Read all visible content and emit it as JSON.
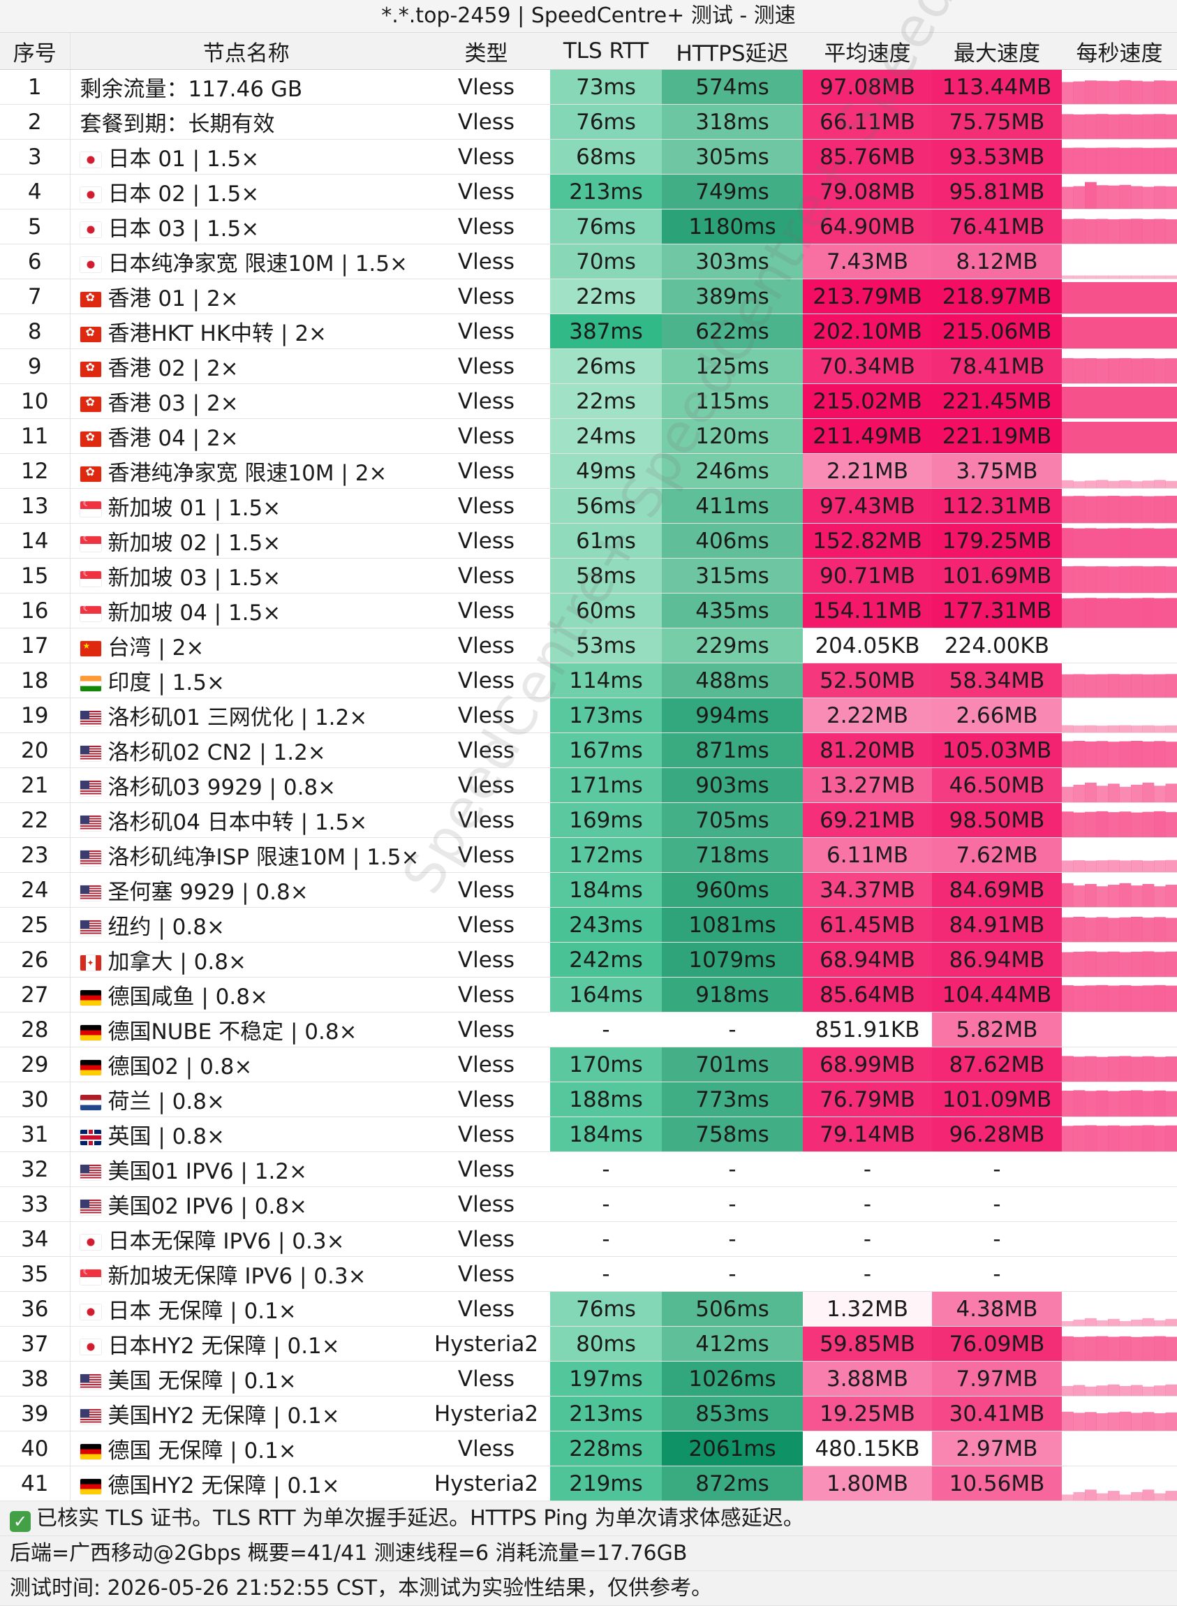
{
  "title": "*.*.top-2459 | SpeedCentre+ 测试 - 测速",
  "headers": [
    "序号",
    "节点名称",
    "类型",
    "TLS RTT",
    "HTTPS延迟",
    "平均速度",
    "最大速度",
    "每秒速度"
  ],
  "rows": [
    {
      "idx": "1",
      "flag": "",
      "name": "剩余流量：117.46 GB",
      "type": "Vless",
      "rtt": "73ms",
      "https": "574ms",
      "avg": "97.08MB",
      "max": "113.44MB",
      "spark": [
        0.7,
        0.72,
        0.75,
        0.74,
        0.73,
        0.76,
        0.74,
        0.72,
        0.75,
        0.74
      ]
    },
    {
      "idx": "2",
      "flag": "",
      "name": "套餐到期：长期有效",
      "type": "Vless",
      "rtt": "76ms",
      "https": "318ms",
      "avg": "66.11MB",
      "max": "75.75MB",
      "spark": []
    },
    {
      "idx": "3",
      "flag": "jp",
      "name": "日本 01 | 1.5×",
      "type": "Vless",
      "rtt": "68ms",
      "https": "305ms",
      "avg": "85.76MB",
      "max": "93.53MB",
      "spark": []
    },
    {
      "idx": "4",
      "flag": "jp",
      "name": "日本 02 | 1.5×",
      "type": "Vless",
      "rtt": "213ms",
      "https": "749ms",
      "avg": "79.08MB",
      "max": "95.81MB",
      "spark": [
        0.7,
        0.72,
        0.85,
        0.75,
        0.74,
        0.76,
        0.72,
        0.7,
        0.72,
        0.71
      ]
    },
    {
      "idx": "5",
      "flag": "jp",
      "name": "日本 03 | 1.5×",
      "type": "Vless",
      "rtt": "76ms",
      "https": "1180ms",
      "avg": "64.90MB",
      "max": "76.41MB",
      "spark": []
    },
    {
      "idx": "6",
      "flag": "jp",
      "name": "日本纯净家宽 限速10M | 1.5×",
      "type": "Vless",
      "rtt": "70ms",
      "https": "303ms",
      "avg": "7.43MB",
      "max": "8.12MB",
      "spark": [
        0.1,
        0.1,
        0.1,
        0.1,
        0.1,
        0.1,
        0.1,
        0.1,
        0.1,
        0.1
      ]
    },
    {
      "idx": "7",
      "flag": "hk",
      "name": "香港 01 | 2×",
      "type": "Vless",
      "rtt": "22ms",
      "https": "389ms",
      "avg": "213.79MB",
      "max": "218.97MB",
      "spark": [
        1,
        1,
        1,
        1,
        1,
        1,
        1,
        1,
        1,
        1
      ]
    },
    {
      "idx": "8",
      "flag": "hk",
      "name": "香港HKT HK中转 | 2×",
      "type": "Vless",
      "rtt": "387ms",
      "https": "622ms",
      "avg": "202.10MB",
      "max": "215.06MB",
      "spark": [
        1,
        1,
        1,
        1,
        1,
        1,
        1,
        1,
        1,
        1
      ]
    },
    {
      "idx": "9",
      "flag": "hk",
      "name": "香港 02 | 2×",
      "type": "Vless",
      "rtt": "26ms",
      "https": "125ms",
      "avg": "70.34MB",
      "max": "78.41MB",
      "spark": []
    },
    {
      "idx": "10",
      "flag": "hk",
      "name": "香港 03 | 2×",
      "type": "Vless",
      "rtt": "22ms",
      "https": "115ms",
      "avg": "215.02MB",
      "max": "221.45MB",
      "spark": [
        1,
        1,
        1,
        1,
        1,
        1,
        1,
        1,
        1,
        1
      ]
    },
    {
      "idx": "11",
      "flag": "hk",
      "name": "香港 04 | 2×",
      "type": "Vless",
      "rtt": "24ms",
      "https": "120ms",
      "avg": "211.49MB",
      "max": "221.19MB",
      "spark": [
        1,
        1,
        1,
        1,
        1,
        1,
        1,
        1,
        1,
        1
      ]
    },
    {
      "idx": "12",
      "flag": "hk",
      "name": "香港纯净家宽 限速10M | 2×",
      "type": "Vless",
      "rtt": "49ms",
      "https": "246ms",
      "avg": "2.21MB",
      "max": "3.75MB",
      "spark": []
    },
    {
      "idx": "13",
      "flag": "sg",
      "name": "新加坡 01 | 1.5×",
      "type": "Vless",
      "rtt": "56ms",
      "https": "411ms",
      "avg": "97.43MB",
      "max": "112.31MB",
      "spark": []
    },
    {
      "idx": "14",
      "flag": "sg",
      "name": "新加坡 02 | 1.5×",
      "type": "Vless",
      "rtt": "61ms",
      "https": "406ms",
      "avg": "152.82MB",
      "max": "179.25MB",
      "spark": []
    },
    {
      "idx": "15",
      "flag": "sg",
      "name": "新加坡 03 | 1.5×",
      "type": "Vless",
      "rtt": "58ms",
      "https": "315ms",
      "avg": "90.71MB",
      "max": "101.69MB",
      "spark": []
    },
    {
      "idx": "16",
      "flag": "sg",
      "name": "新加坡 04 | 1.5×",
      "type": "Vless",
      "rtt": "60ms",
      "https": "435ms",
      "avg": "154.11MB",
      "max": "177.31MB",
      "spark": []
    },
    {
      "idx": "17",
      "flag": "cn",
      "name": "台湾 | 2×",
      "type": "Vless",
      "rtt": "53ms",
      "https": "229ms",
      "avg": "204.05KB",
      "max": "224.00KB",
      "spark": []
    },
    {
      "idx": "18",
      "flag": "in",
      "name": "印度 | 1.5×",
      "type": "Vless",
      "rtt": "114ms",
      "https": "488ms",
      "avg": "52.50MB",
      "max": "58.34MB",
      "spark": []
    },
    {
      "idx": "19",
      "flag": "us",
      "name": "洛杉矶01 三网优化 | 1.2×",
      "type": "Vless",
      "rtt": "173ms",
      "https": "994ms",
      "avg": "2.22MB",
      "max": "2.66MB",
      "spark": []
    },
    {
      "idx": "20",
      "flag": "us",
      "name": "洛杉矶02 CN2 | 1.2×",
      "type": "Vless",
      "rtt": "167ms",
      "https": "871ms",
      "avg": "81.20MB",
      "max": "105.03MB",
      "spark": []
    },
    {
      "idx": "21",
      "flag": "us",
      "name": "洛杉矶03 9929 | 0.8×",
      "type": "Vless",
      "rtt": "171ms",
      "https": "903ms",
      "avg": "13.27MB",
      "max": "46.50MB",
      "spark": []
    },
    {
      "idx": "22",
      "flag": "us",
      "name": "洛杉矶04 日本中转 | 1.5×",
      "type": "Vless",
      "rtt": "169ms",
      "https": "705ms",
      "avg": "69.21MB",
      "max": "98.50MB",
      "spark": []
    },
    {
      "idx": "23",
      "flag": "us",
      "name": "洛杉矶纯净ISP 限速10M | 1.5×",
      "type": "Vless",
      "rtt": "172ms",
      "https": "718ms",
      "avg": "6.11MB",
      "max": "7.62MB",
      "spark": []
    },
    {
      "idx": "24",
      "flag": "us",
      "name": "圣何塞 9929 | 0.8×",
      "type": "Vless",
      "rtt": "184ms",
      "https": "960ms",
      "avg": "34.37MB",
      "max": "84.69MB",
      "spark": []
    },
    {
      "idx": "25",
      "flag": "us",
      "name": "纽约 | 0.8×",
      "type": "Vless",
      "rtt": "243ms",
      "https": "1081ms",
      "avg": "61.45MB",
      "max": "84.91MB",
      "spark": []
    },
    {
      "idx": "26",
      "flag": "ca",
      "name": "加拿大 | 0.8×",
      "type": "Vless",
      "rtt": "242ms",
      "https": "1079ms",
      "avg": "68.94MB",
      "max": "86.94MB",
      "spark": []
    },
    {
      "idx": "27",
      "flag": "de",
      "name": "德国咸鱼 | 0.8×",
      "type": "Vless",
      "rtt": "164ms",
      "https": "918ms",
      "avg": "85.64MB",
      "max": "104.44MB",
      "spark": []
    },
    {
      "idx": "28",
      "flag": "de",
      "name": "德国NUBE 不稳定 | 0.8×",
      "type": "Vless",
      "rtt": "-",
      "https": "-",
      "avg": "851.91KB",
      "max": "5.82MB",
      "spark": []
    },
    {
      "idx": "29",
      "flag": "de",
      "name": "德国02 | 0.8×",
      "type": "Vless",
      "rtt": "170ms",
      "https": "701ms",
      "avg": "68.99MB",
      "max": "87.62MB",
      "spark": []
    },
    {
      "idx": "30",
      "flag": "nl",
      "name": "荷兰 | 0.8×",
      "type": "Vless",
      "rtt": "188ms",
      "https": "773ms",
      "avg": "76.79MB",
      "max": "101.09MB",
      "spark": []
    },
    {
      "idx": "31",
      "flag": "gb",
      "name": "英国 | 0.8×",
      "type": "Vless",
      "rtt": "184ms",
      "https": "758ms",
      "avg": "79.14MB",
      "max": "96.28MB",
      "spark": []
    },
    {
      "idx": "32",
      "flag": "us",
      "name": "美国01 IPV6 | 1.2×",
      "type": "Vless",
      "rtt": "-",
      "https": "-",
      "avg": "-",
      "max": "-",
      "spark": []
    },
    {
      "idx": "33",
      "flag": "us",
      "name": "美国02 IPV6 | 0.8×",
      "type": "Vless",
      "rtt": "-",
      "https": "-",
      "avg": "-",
      "max": "-",
      "spark": []
    },
    {
      "idx": "34",
      "flag": "jp",
      "name": "日本无保障 IPV6 | 0.3×",
      "type": "Vless",
      "rtt": "-",
      "https": "-",
      "avg": "-",
      "max": "-",
      "spark": []
    },
    {
      "idx": "35",
      "flag": "sg",
      "name": "新加坡无保障 IPV6 | 0.3×",
      "type": "Vless",
      "rtt": "-",
      "https": "-",
      "avg": "-",
      "max": "-",
      "spark": []
    },
    {
      "idx": "36",
      "flag": "jp",
      "name": "日本 无保障 | 0.1×",
      "type": "Vless",
      "rtt": "76ms",
      "https": "506ms",
      "avg": "1.32MB",
      "max": "4.38MB",
      "spark": []
    },
    {
      "idx": "37",
      "flag": "jp",
      "name": "日本HY2 无保障 | 0.1×",
      "type": "Hysteria2",
      "rtt": "80ms",
      "https": "412ms",
      "avg": "59.85MB",
      "max": "76.09MB",
      "spark": []
    },
    {
      "idx": "38",
      "flag": "us",
      "name": "美国 无保障 | 0.1×",
      "type": "Vless",
      "rtt": "197ms",
      "https": "1026ms",
      "avg": "3.88MB",
      "max": "7.97MB",
      "spark": []
    },
    {
      "idx": "39",
      "flag": "us",
      "name": "美国HY2 无保障 | 0.1×",
      "type": "Hysteria2",
      "rtt": "213ms",
      "https": "853ms",
      "avg": "19.25MB",
      "max": "30.41MB",
      "spark": []
    },
    {
      "idx": "40",
      "flag": "de",
      "name": "德国 无保障 | 0.1×",
      "type": "Vless",
      "rtt": "228ms",
      "https": "2061ms",
      "avg": "480.15KB",
      "max": "2.97MB",
      "spark": []
    },
    {
      "idx": "41",
      "flag": "de",
      "name": "德国HY2 无保障 | 0.1×",
      "type": "Hysteria2",
      "rtt": "219ms",
      "https": "872ms",
      "avg": "1.80MB",
      "max": "10.56MB",
      "spark": []
    }
  ],
  "footer": {
    "line1": "已核实 TLS 证书。TLS RTT 为单次握手延迟。HTTPS Ping 为单次请求体感延迟。",
    "line2": "后端=广西移动@2Gbps 概要=41/41 测速线程=6 消耗流量=17.76GB",
    "line3": "测试时间: 2026-05-26 21:52:55 CST，本测试为实验性结果，仅供参考。",
    "check_icon": "check-icon"
  },
  "watermark": "SpeedCentre+ SpeedCentre+ SpeedCentre+",
  "colors": {
    "header_bg": "#f2f2f2",
    "rtt_scale": [
      "#c8efdb",
      "#2db886"
    ],
    "https_scale": [
      "#a6e6c6",
      "#0e9265"
    ],
    "speed_scale": [
      "#fde5ee",
      "#f30d63"
    ],
    "spark_color": "#f7518c"
  }
}
